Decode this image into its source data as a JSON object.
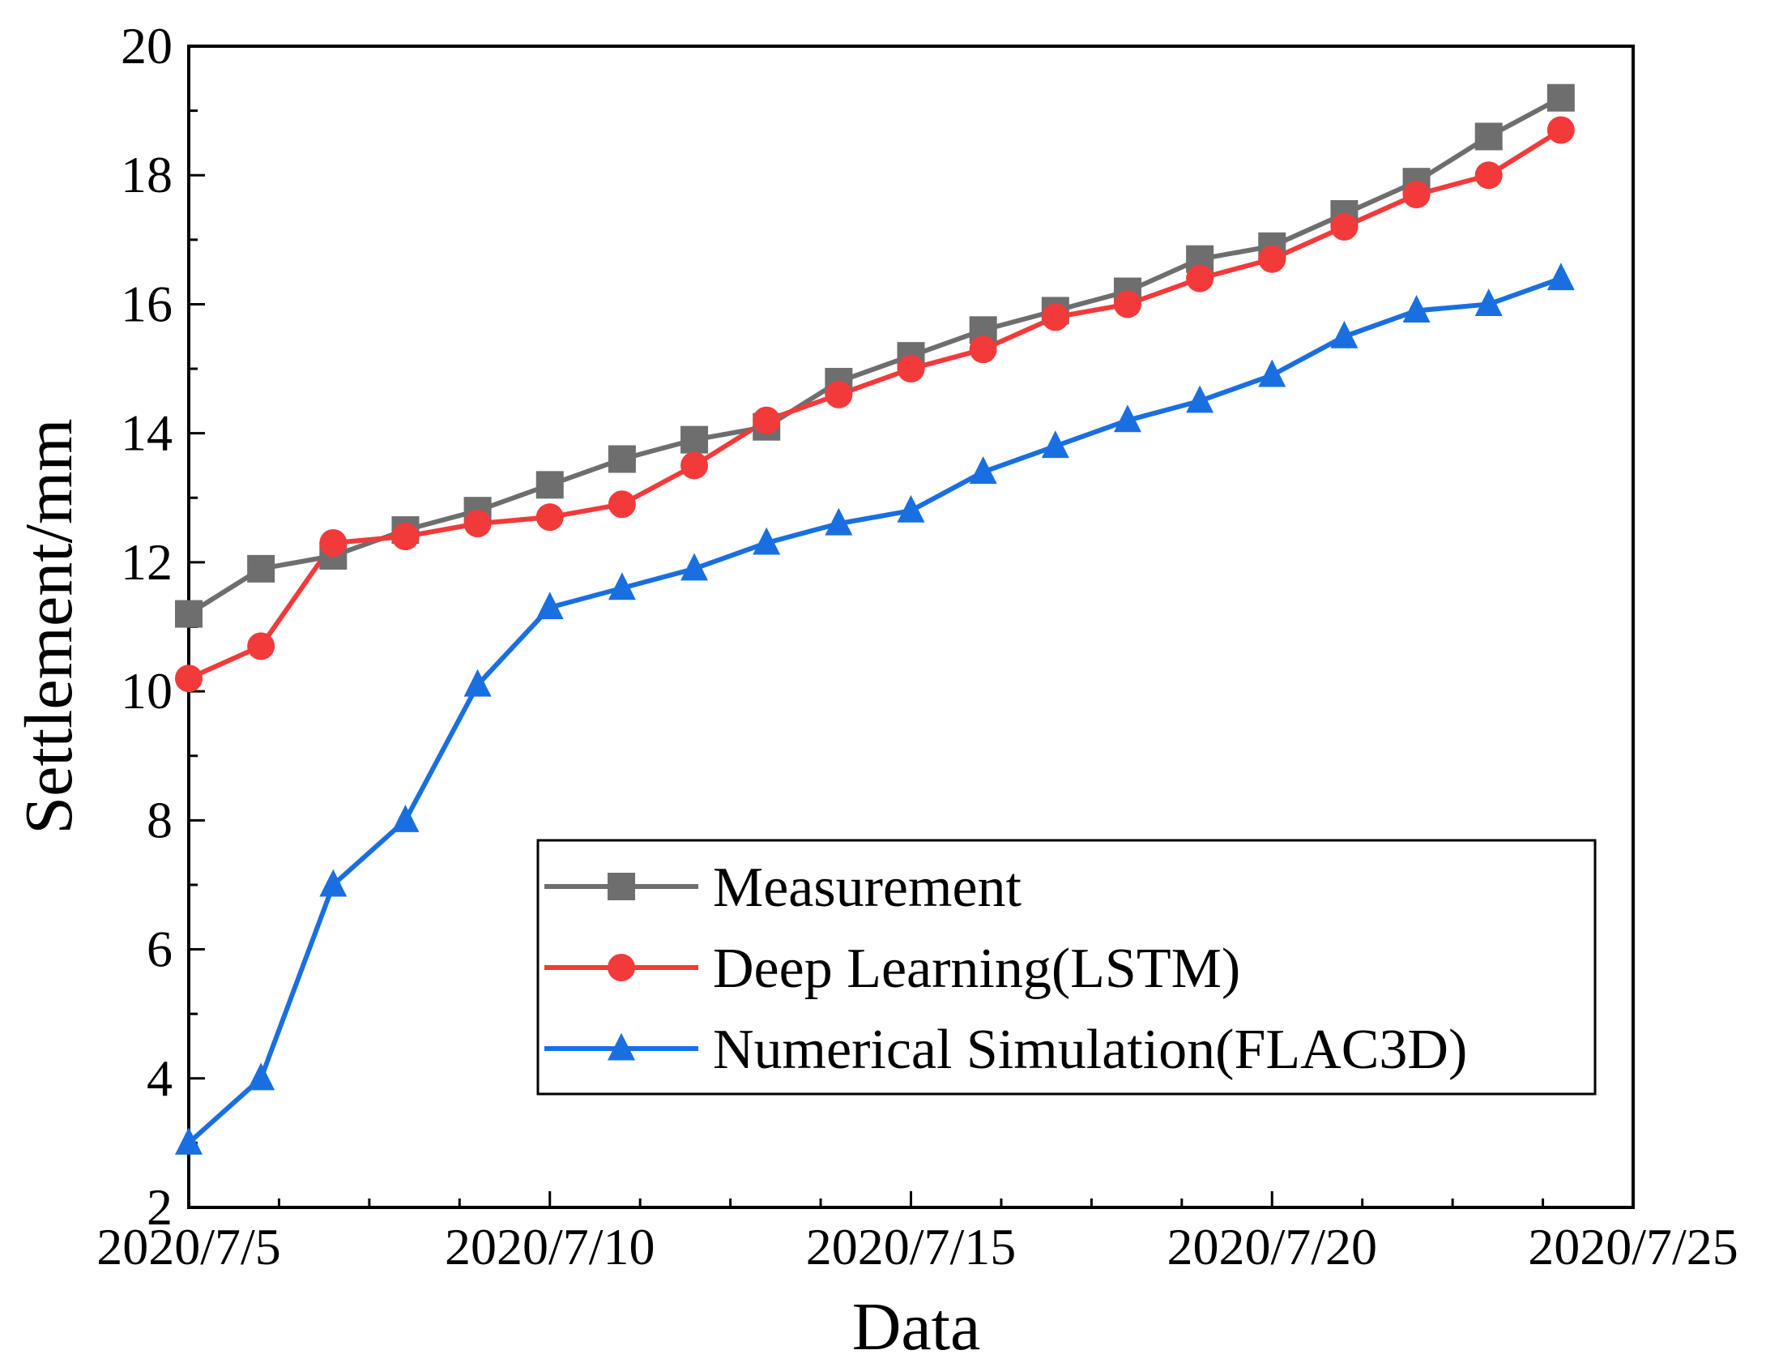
{
  "chart_data": {
    "type": "line",
    "xlabel": "Data",
    "ylabel": "Settlement/mm",
    "xlim": [
      "2020/7/5",
      "2020/7/25"
    ],
    "ylim": [
      2,
      20
    ],
    "x_tick_labels": [
      "2020/7/5",
      "2020/7/10",
      "2020/7/15",
      "2020/7/20",
      "2020/7/25"
    ],
    "y_tick_labels": [
      "2",
      "4",
      "6",
      "8",
      "10",
      "12",
      "14",
      "16",
      "18",
      "20"
    ],
    "grid": false,
    "legend_position": "bottom-right",
    "x": [
      "2020/7/5",
      "2020/7/6",
      "2020/7/7",
      "2020/7/8",
      "2020/7/9",
      "2020/7/10",
      "2020/7/11",
      "2020/7/12",
      "2020/7/13",
      "2020/7/14",
      "2020/7/15",
      "2020/7/16",
      "2020/7/17",
      "2020/7/18",
      "2020/7/19",
      "2020/7/20",
      "2020/7/21",
      "2020/7/22",
      "2020/7/23",
      "2020/7/24"
    ],
    "series": [
      {
        "name": "Measurement",
        "color": "#6e6e6e",
        "marker": "square",
        "values": [
          11.2,
          11.9,
          12.1,
          12.5,
          12.8,
          13.2,
          13.6,
          13.9,
          14.1,
          14.8,
          15.2,
          15.6,
          15.9,
          16.2,
          16.7,
          16.9,
          17.4,
          17.9,
          18.6,
          19.2
        ]
      },
      {
        "name": "Deep Learning(LSTM)",
        "color": "#f23a3a",
        "marker": "circle",
        "values": [
          10.2,
          10.7,
          12.3,
          12.4,
          12.6,
          12.7,
          12.9,
          13.5,
          14.2,
          14.6,
          15.0,
          15.3,
          15.8,
          16.0,
          16.4,
          16.7,
          17.2,
          17.7,
          18.0,
          18.7
        ]
      },
      {
        "name": "Numerical Simulation(FLAC3D)",
        "color": "#1a6fe0",
        "marker": "triangle",
        "values": [
          3.0,
          4.0,
          7.0,
          8.0,
          10.1,
          11.3,
          11.6,
          11.9,
          12.3,
          12.6,
          12.8,
          13.4,
          13.8,
          14.2,
          14.5,
          14.9,
          15.5,
          15.9,
          16.0,
          16.4
        ]
      }
    ]
  }
}
